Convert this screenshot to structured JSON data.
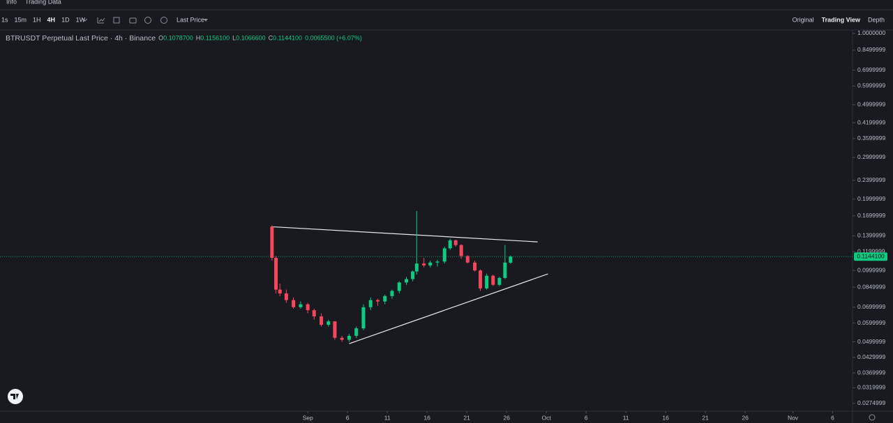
{
  "ui": {
    "tabs": [
      "Info",
      "Trading Data"
    ],
    "intervals": [
      "1s",
      "15m",
      "1H",
      "4H",
      "1D",
      "1W"
    ],
    "active_interval": 3,
    "price_mode": "Last Price",
    "views": [
      "Original",
      "Trading View",
      "Depth"
    ],
    "active_view": 1,
    "symbol": "BTRUSDT Perpetual Last Price · 4h · Binance"
  },
  "chart_data": {
    "type": "candlestick",
    "log_scale": true,
    "grid": false,
    "ohlc_legend": [
      {
        "key": "O",
        "value": "0.1078700"
      },
      {
        "key": "H",
        "value": "0.1156100"
      },
      {
        "key": "L",
        "value": "0.1066600"
      },
      {
        "key": "C",
        "value": "0.1144100"
      },
      {
        "key": "",
        "value": "0.0065500 (+6.07%)"
      }
    ],
    "up_color": "#0ecb81",
    "down_color": "#f6465d",
    "xlim": [
      -38.7,
      68.5
    ],
    "ylim": [
      0.0255,
      1.027
    ],
    "xticks": [
      {
        "value": 0,
        "label": "Sep"
      },
      {
        "value": 5,
        "label": "6"
      },
      {
        "value": 10,
        "label": "11"
      },
      {
        "value": 15,
        "label": "16"
      },
      {
        "value": 20,
        "label": "21"
      },
      {
        "value": 25,
        "label": "26"
      },
      {
        "value": 30,
        "label": "Oct"
      },
      {
        "value": 35,
        "label": "6"
      },
      {
        "value": 40,
        "label": "11"
      },
      {
        "value": 45,
        "label": "16"
      },
      {
        "value": 50,
        "label": "21"
      },
      {
        "value": 55,
        "label": "26"
      },
      {
        "value": 61,
        "label": "Nov"
      },
      {
        "value": 66,
        "label": "6"
      }
    ],
    "yticks": [
      {
        "value": 1,
        "label": "1.0000000"
      },
      0.8499999,
      0.6999999,
      0.5999999,
      0.4999999,
      0.4199999,
      0.3599999,
      0.2999999,
      0.2399999,
      0.1999999,
      0.1699999,
      0.1399999,
      0.1199999,
      0.0999999,
      0.0849999,
      0.0699999,
      0.0599999,
      0.0499999,
      0.0429999,
      0.0369999,
      0.0319999,
      0.0274999
    ],
    "x": [
      -4.5,
      -4.0,
      -3.5,
      -2.7,
      -1.8,
      -0.9,
      0,
      0.8,
      1.7,
      2.6,
      3.4,
      4.3,
      5.2,
      6.1,
      7.0,
      7.9,
      8.8,
      9.7,
      10.6,
      11.5,
      12.4,
      13.2,
      13.7,
      14.6,
      15.4,
      16.3,
      17.2,
      17.9,
      18.6,
      19.3,
      20.1,
      21.0,
      21.7,
      22.5,
      23.3,
      24.1,
      24.8,
      25.5
    ],
    "open": [
      0.153,
      0.113,
      0.083,
      0.08,
      0.075,
      0.07,
      0.072,
      0.068,
      0.064,
      0.059,
      0.061,
      0.052,
      0.051,
      0.053,
      0.057,
      0.07,
      0.075,
      0.074,
      0.078,
      0.082,
      0.089,
      0.092,
      0.099,
      0.107,
      0.105,
      0.108,
      0.109,
      0.124,
      0.134,
      0.128,
      0.115,
      0.108,
      0.1,
      0.084,
      0.095,
      0.087,
      0.093,
      0.10787
    ],
    "high": [
      0.155,
      0.115,
      0.088,
      0.083,
      0.077,
      0.074,
      0.073,
      0.069,
      0.066,
      0.062,
      0.061,
      0.053,
      0.054,
      0.058,
      0.072,
      0.077,
      0.076,
      0.079,
      0.083,
      0.09,
      0.094,
      0.1,
      0.178,
      0.113,
      0.11,
      0.111,
      0.126,
      0.136,
      0.135,
      0.129,
      0.116,
      0.11,
      0.101,
      0.097,
      0.096,
      0.094,
      0.128,
      0.11561
    ],
    "low": [
      0.11,
      0.08,
      0.078,
      0.073,
      0.069,
      0.069,
      0.066,
      0.062,
      0.058,
      0.058,
      0.051,
      0.05,
      0.05,
      0.052,
      0.056,
      0.068,
      0.071,
      0.072,
      0.076,
      0.08,
      0.087,
      0.09,
      0.096,
      0.103,
      0.103,
      0.104,
      0.107,
      0.122,
      0.126,
      0.112,
      0.107,
      0.099,
      0.082,
      0.083,
      0.086,
      0.086,
      0.092,
      0.10666
    ],
    "close": [
      0.113,
      0.083,
      0.08,
      0.075,
      0.07,
      0.072,
      0.068,
      0.064,
      0.059,
      0.061,
      0.052,
      0.051,
      0.053,
      0.057,
      0.07,
      0.075,
      0.074,
      0.078,
      0.082,
      0.089,
      0.092,
      0.099,
      0.107,
      0.105,
      0.108,
      0.109,
      0.124,
      0.134,
      0.128,
      0.115,
      0.108,
      0.1,
      0.084,
      0.095,
      0.087,
      0.093,
      0.108,
      0.11441
    ],
    "last_price": {
      "value": 0.11441,
      "label": "0.1144100"
    },
    "trendlines": [
      {
        "x": [
          -4.6,
          28.9
        ],
        "y": [
          0.153,
          0.132
        ],
        "color": "#e8e8e8"
      },
      {
        "x": [
          5.2,
          30.2
        ],
        "y": [
          0.0491,
          0.0967
        ],
        "color": "#e8e8e8"
      }
    ]
  }
}
